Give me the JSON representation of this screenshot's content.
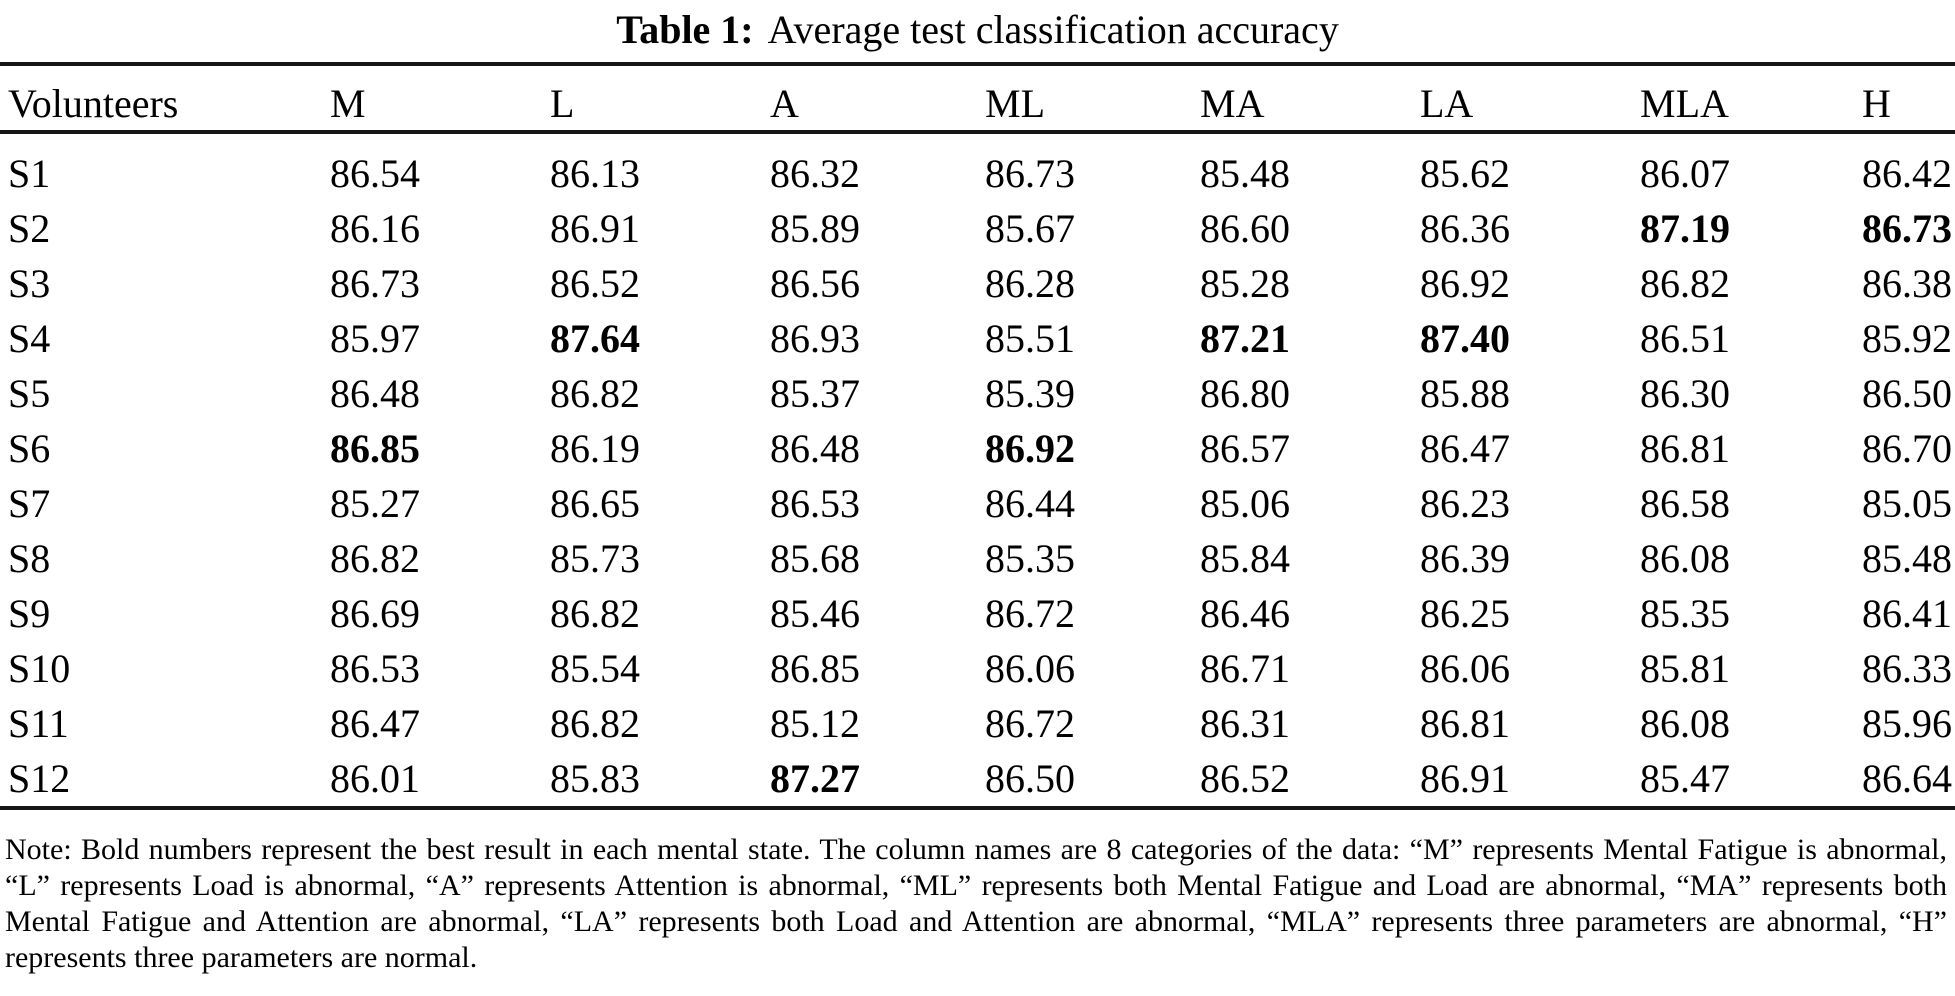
{
  "caption": {
    "label": "Table 1:",
    "text": "Average test classification accuracy"
  },
  "table": {
    "columns": [
      "Volunteers",
      "M",
      "L",
      "A",
      "ML",
      "MA",
      "LA",
      "MLA",
      "H"
    ],
    "rows": [
      {
        "id": "S1",
        "values": [
          "86.54",
          "86.13",
          "86.32",
          "86.73",
          "85.48",
          "85.62",
          "86.07",
          "86.42"
        ]
      },
      {
        "id": "S2",
        "values": [
          "86.16",
          "86.91",
          "85.89",
          "85.67",
          "86.60",
          "86.36",
          "87.19",
          "86.73"
        ]
      },
      {
        "id": "S3",
        "values": [
          "86.73",
          "86.52",
          "86.56",
          "86.28",
          "85.28",
          "86.92",
          "86.82",
          "86.38"
        ]
      },
      {
        "id": "S4",
        "values": [
          "85.97",
          "87.64",
          "86.93",
          "85.51",
          "87.21",
          "87.40",
          "86.51",
          "85.92"
        ]
      },
      {
        "id": "S5",
        "values": [
          "86.48",
          "86.82",
          "85.37",
          "85.39",
          "86.80",
          "85.88",
          "86.30",
          "86.50"
        ]
      },
      {
        "id": "S6",
        "values": [
          "86.85",
          "86.19",
          "86.48",
          "86.92",
          "86.57",
          "86.47",
          "86.81",
          "86.70"
        ]
      },
      {
        "id": "S7",
        "values": [
          "85.27",
          "86.65",
          "86.53",
          "86.44",
          "85.06",
          "86.23",
          "86.58",
          "85.05"
        ]
      },
      {
        "id": "S8",
        "values": [
          "86.82",
          "85.73",
          "85.68",
          "85.35",
          "85.84",
          "86.39",
          "86.08",
          "85.48"
        ]
      },
      {
        "id": "S9",
        "values": [
          "86.69",
          "86.82",
          "85.46",
          "86.72",
          "86.46",
          "86.25",
          "85.35",
          "86.41"
        ]
      },
      {
        "id": "S10",
        "values": [
          "86.53",
          "85.54",
          "86.85",
          "86.06",
          "86.71",
          "86.06",
          "85.81",
          "86.33"
        ]
      },
      {
        "id": "S11",
        "values": [
          "86.47",
          "86.82",
          "85.12",
          "86.72",
          "86.31",
          "86.81",
          "86.08",
          "85.96"
        ]
      },
      {
        "id": "S12",
        "values": [
          "86.01",
          "85.83",
          "87.27",
          "86.50",
          "86.52",
          "86.91",
          "85.47",
          "86.64"
        ]
      }
    ],
    "bold_cells": {
      "S2": [
        6,
        7
      ],
      "S4": [
        1,
        4,
        5
      ],
      "S6": [
        0,
        3
      ],
      "S12": [
        2
      ]
    }
  },
  "note": {
    "text": "Note: Bold numbers represent the best result in each mental state. The column names are 8 categories of the data: “M” represents Mental Fatigue is abnormal, “L” represents Load is abnormal, “A” represents Attention is abnormal, “ML” represents both Mental Fatigue and Load are abnormal, “MA” represents both Mental Fatigue and Attention are abnormal, “LA” represents both Load and Attention are abnormal, “MLA” represents three parameters are abnormal, “H” represents three parameters are normal."
  }
}
